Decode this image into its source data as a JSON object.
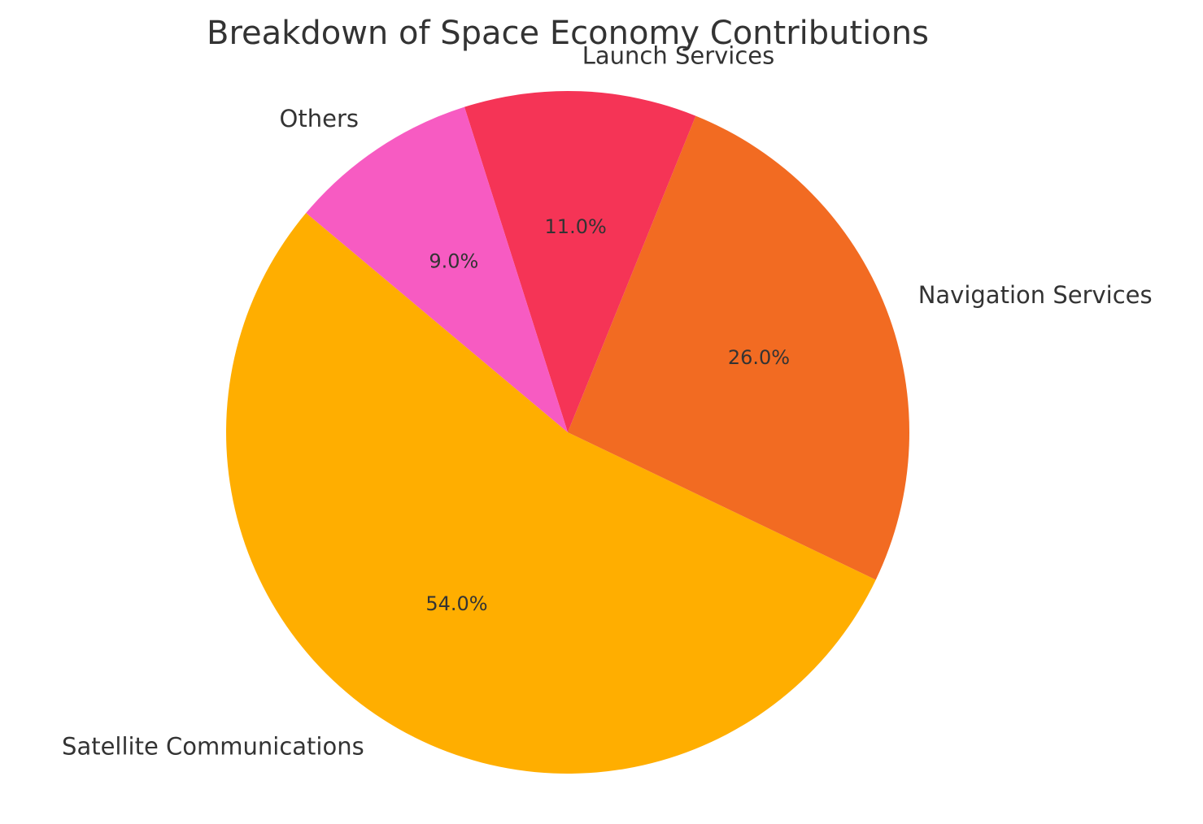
{
  "chart_data": {
    "type": "pie",
    "title": "Breakdown of Space Economy Contributions",
    "start_angle_deg": 140,
    "direction": "counterclockwise",
    "slices": [
      {
        "label": "Satellite Communications",
        "value": 54.0,
        "pct_label": "54.0%",
        "color": "#FFAE00"
      },
      {
        "label": "Navigation Services",
        "value": 26.0,
        "pct_label": "26.0%",
        "color": "#F26B22"
      },
      {
        "label": "Launch Services",
        "value": 11.0,
        "pct_label": "11.0%",
        "color": "#F53456"
      },
      {
        "label": "Others",
        "value": 9.0,
        "pct_label": "9.0%",
        "color": "#F75BC2"
      }
    ]
  }
}
